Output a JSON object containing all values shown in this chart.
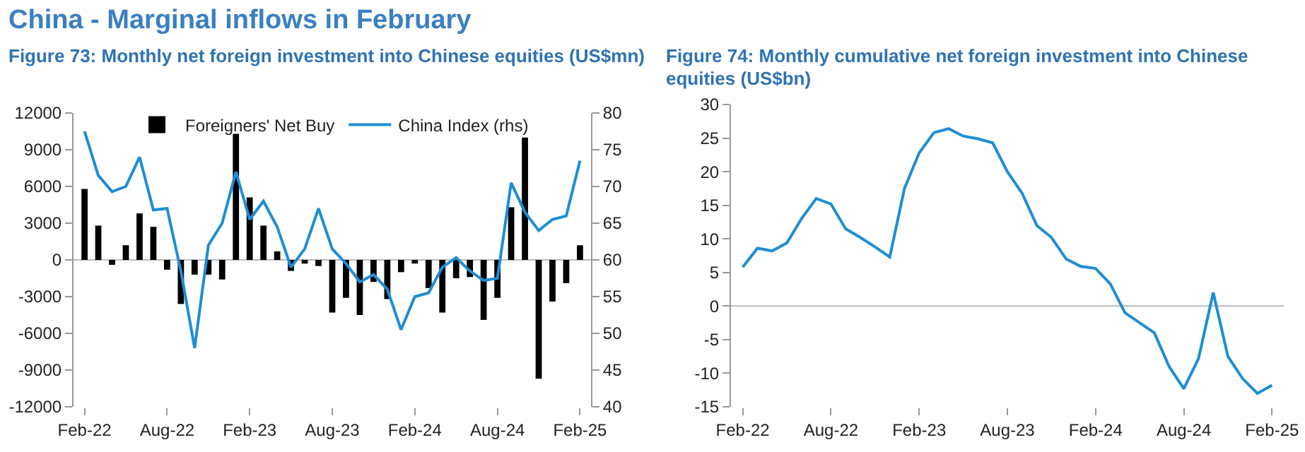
{
  "chart_data": [
    {
      "type": "bar",
      "title": "China - Marginal inflows in February",
      "subtitle": "Figure 73: Monthly net foreign investment into Chinese equities (US$mn)",
      "categories": [
        "Feb-22",
        null,
        null,
        null,
        null,
        null,
        "Aug-22",
        null,
        null,
        null,
        null,
        null,
        "Feb-23",
        null,
        null,
        null,
        null,
        null,
        "Aug-23",
        null,
        null,
        null,
        null,
        null,
        "Feb-24",
        null,
        null,
        null,
        null,
        null,
        "Aug-24",
        null,
        null,
        null,
        null,
        null,
        "Feb-25"
      ],
      "series": [
        {
          "name": "Foreigners' Net Buy",
          "color": "#000000",
          "values": [
            5800,
            2800,
            -400,
            1200,
            3800,
            2700,
            -800,
            -3600,
            -1200,
            -1200,
            -1600,
            10300,
            5100,
            2800,
            700,
            -900,
            -300,
            -500,
            -4300,
            -3100,
            -4500,
            -1800,
            -3200,
            -1000,
            -300,
            -2300,
            -4300,
            -1500,
            -1400,
            -4900,
            -3100,
            4300,
            10000,
            -9700,
            -3400,
            -1900,
            1200
          ]
        },
        {
          "name": "China Index (rhs)",
          "type": "line",
          "axis": "y2",
          "color": "#1f8dd6",
          "values": [
            77.5,
            71.5,
            69.3,
            70,
            74,
            66.8,
            67,
            58.5,
            48,
            62,
            65,
            72,
            65.5,
            68,
            64.5,
            59,
            61.5,
            67,
            61.5,
            59.5,
            57,
            58,
            56,
            50.5,
            55,
            55.5,
            59,
            60.3,
            58.5,
            57.2,
            57.5,
            70.5,
            66.5,
            64,
            65.5,
            66,
            73.5
          ]
        }
      ],
      "ylim": [
        -12000,
        12000
      ],
      "yticks": [
        -12000,
        -9000,
        -6000,
        -3000,
        0,
        3000,
        6000,
        9000,
        12000
      ],
      "y2lim": [
        40,
        80
      ],
      "y2ticks": [
        40,
        45,
        50,
        55,
        60,
        65,
        70,
        75,
        80
      ],
      "ref_lines": [
        {
          "axis": "y",
          "value": 0,
          "color": "#bbbbbb"
        }
      ],
      "grid": false,
      "legend": "top",
      "marker": "none"
    },
    {
      "type": "line",
      "title": "Figure 74: Monthly cumulative net foreign investment into Chinese equities (US$bn)",
      "categories": [
        "Feb-22",
        null,
        null,
        null,
        null,
        null,
        "Aug-22",
        null,
        null,
        null,
        null,
        null,
        "Feb-23",
        null,
        null,
        null,
        null,
        null,
        "Aug-23",
        null,
        null,
        null,
        null,
        null,
        "Feb-24",
        null,
        null,
        null,
        null,
        null,
        "Aug-24",
        null,
        null,
        null,
        null,
        null,
        "Feb-25"
      ],
      "series": [
        {
          "color": "#1f8dd6",
          "values": [
            5.8,
            8.6,
            8.2,
            9.4,
            13,
            16,
            15.2,
            11.5,
            10.2,
            8.8,
            7.3,
            17.5,
            22.8,
            25.8,
            26.4,
            25.3,
            24.9,
            24.3,
            20,
            16.8,
            12,
            10.2,
            7,
            5.9,
            5.6,
            3.3,
            -1,
            -2.5,
            -4,
            -9,
            -12.3,
            -7.8,
            2,
            -7.5,
            -10.8,
            -13,
            -11.8
          ]
        }
      ],
      "ylim": [
        -15,
        30
      ],
      "yticks": [
        -15,
        -10,
        -5,
        0,
        5,
        10,
        15,
        20,
        25,
        30
      ],
      "ref_lines": [
        {
          "axis": "y",
          "value": 0,
          "color": "#bbbbbb"
        }
      ],
      "grid": false,
      "legend": false,
      "marker": "none"
    }
  ]
}
